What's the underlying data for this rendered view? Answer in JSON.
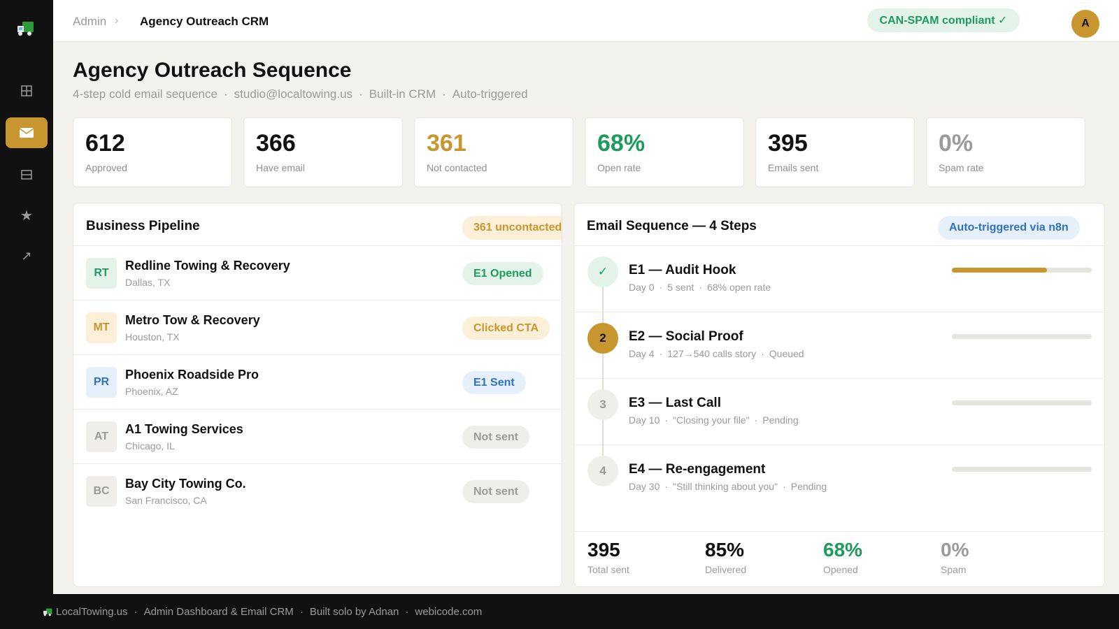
{
  "colors": {
    "accent": "#c8962e",
    "green": "#1f9a5d",
    "blue": "#2f73c0",
    "muted": "#9a9a9a"
  },
  "sidebar": {
    "logo_icon": "tow-truck-icon",
    "items": [
      {
        "icon": "grid-icon",
        "active": false
      },
      {
        "icon": "mail-icon",
        "active": true
      },
      {
        "icon": "table-icon",
        "active": false
      },
      {
        "icon": "star-icon",
        "active": false
      },
      {
        "icon": "arrow-up-right-icon",
        "active": false
      }
    ]
  },
  "header": {
    "breadcrumb_root": "Admin",
    "breadcrumb_sep": "›",
    "breadcrumb_current": "Agency Outreach CRM",
    "compliance": "CAN-SPAM compliant ✓",
    "avatar_initial": "A"
  },
  "page": {
    "title": "Agency Outreach Sequence",
    "subtitle_parts": [
      "4-step cold email sequence",
      "studio@localtowing.us",
      "Built-in CRM",
      "Auto-triggered"
    ],
    "separator": "·"
  },
  "stats": [
    {
      "value": "612",
      "label": "Approved",
      "color": "#111111"
    },
    {
      "value": "366",
      "label": "Have email",
      "color": "#111111"
    },
    {
      "value": "361",
      "label": "Not contacted",
      "color": "#c8962e"
    },
    {
      "value": "68%",
      "label": "Open rate",
      "color": "#1f9a5d"
    },
    {
      "value": "395",
      "label": "Emails sent",
      "color": "#111111"
    },
    {
      "value": "0%",
      "label": "Spam rate",
      "color": "#9a9a9a"
    }
  ],
  "pipeline": {
    "title": "Business Pipeline",
    "badge": "361 uncontacted",
    "rows": [
      {
        "initials": "RT",
        "name": "Redline Towing & Recovery",
        "location": "Dallas, TX",
        "status": "E1 Opened",
        "tone": "green"
      },
      {
        "initials": "MT",
        "name": "Metro Tow & Recovery",
        "location": "Houston, TX",
        "status": "Clicked CTA",
        "tone": "amber"
      },
      {
        "initials": "PR",
        "name": "Phoenix Roadside Pro",
        "location": "Phoenix, AZ",
        "status": "E1 Sent",
        "tone": "blue"
      },
      {
        "initials": "AT",
        "name": "A1 Towing Services",
        "location": "Chicago, IL",
        "status": "Not sent",
        "tone": "gray"
      },
      {
        "initials": "BC",
        "name": "Bay City Towing Co.",
        "location": "San Francisco, CA",
        "status": "Not sent",
        "tone": "gray"
      }
    ]
  },
  "sequence": {
    "title": "Email Sequence — 4 Steps",
    "badge": "Auto-triggered via n8n",
    "steps": [
      {
        "marker": "✓",
        "state": "done",
        "title": "E1 — Audit Hook",
        "meta": [
          "Day 0",
          "5 sent",
          "68% open rate"
        ],
        "progress": 0.68
      },
      {
        "marker": "2",
        "state": "active",
        "title": "E2 — Social Proof",
        "meta": [
          "Day 4",
          "127→540 calls story",
          "Queued"
        ],
        "progress": 0
      },
      {
        "marker": "3",
        "state": "pending",
        "title": "E3 — Last Call",
        "meta": [
          "Day 10",
          "\"Closing your file\"",
          "Pending"
        ],
        "progress": 0
      },
      {
        "marker": "4",
        "state": "pending",
        "title": "E4 — Re-engagement",
        "meta": [
          "Day 30",
          "\"Still thinking about you\"",
          "Pending"
        ],
        "progress": 0
      }
    ],
    "summary": [
      {
        "value": "395",
        "label": "Total sent",
        "color": "#111111"
      },
      {
        "value": "85%",
        "label": "Delivered",
        "color": "#111111"
      },
      {
        "value": "68%",
        "label": "Opened",
        "color": "#1f9a5d"
      },
      {
        "value": "0%",
        "label": "Spam",
        "color": "#9a9a9a"
      }
    ]
  },
  "footer": {
    "parts": [
      "LocalTowing.us",
      "Admin Dashboard & Email CRM",
      "Built solo by Adnan",
      "webicode.com"
    ]
  }
}
